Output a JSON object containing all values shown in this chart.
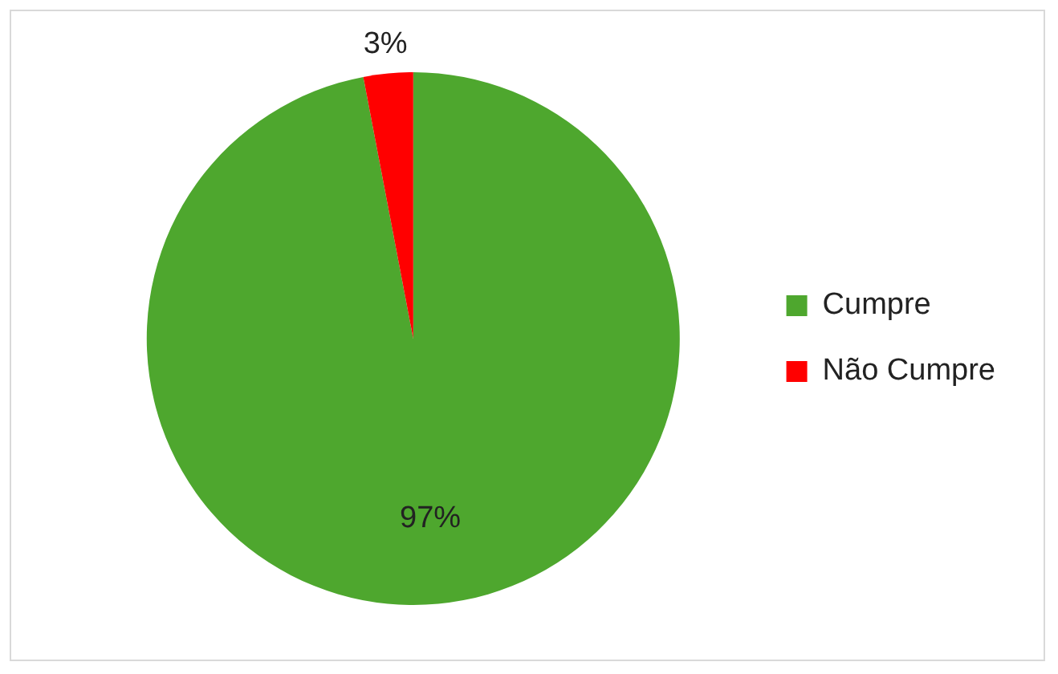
{
  "chart_data": {
    "type": "pie",
    "categories": [
      "Cumpre",
      "Não Cumpre"
    ],
    "values": [
      97,
      3
    ],
    "colors": [
      "#4ea72e",
      "#ff0000"
    ],
    "value_labels": [
      "97%",
      "3%"
    ],
    "legend": "right"
  }
}
